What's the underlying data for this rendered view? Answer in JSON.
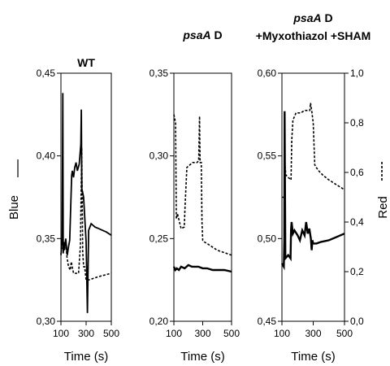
{
  "panels": [
    {
      "title_lines": [
        {
          "segments": [
            {
              "text": "WT",
              "italic": false
            }
          ]
        }
      ],
      "yticks": [
        "0,30",
        "0,35",
        "0,40",
        "0,45"
      ],
      "xticks": [
        "100",
        "300",
        "500"
      ],
      "xlabel": "Time (s)"
    },
    {
      "title_lines": [
        {
          "segments": [
            {
              "text": "psaA",
              "italic": true
            },
            {
              "text": " D",
              "italic": false
            }
          ]
        }
      ],
      "yticks": [
        "0,20",
        "0,25",
        "0,30",
        "0,35"
      ],
      "xticks": [
        "100",
        "300",
        "500"
      ],
      "xlabel": "Time (s)"
    },
    {
      "title_lines": [
        {
          "segments": [
            {
              "text": "psaA",
              "italic": true
            },
            {
              "text": " D",
              "italic": false
            }
          ]
        },
        {
          "segments": [
            {
              "text": "+Myxothiazol +SHAM",
              "italic": false
            }
          ]
        }
      ],
      "yticks": [
        "0,45",
        "0,50",
        "0,55",
        "0,60"
      ],
      "y2ticks": [
        "0,0",
        "0,2",
        "0,4",
        "0,6",
        "0,8",
        "1,0"
      ],
      "xticks": [
        "100",
        "300",
        "500"
      ],
      "xlabel": "Time (s)"
    }
  ],
  "ylabel_left": "Blue",
  "ylabel_right": "Red",
  "chart_data": [
    {
      "type": "line",
      "title": "WT",
      "xlabel": "Time (s)",
      "ylabel": "Blue",
      "xlim": [
        100,
        500
      ],
      "ylim": [
        0.3,
        0.45
      ],
      "series": [
        {
          "name": "Blue",
          "color": "#000000",
          "style": "solid",
          "x": [
            100,
            110,
            115,
            118,
            122,
            128,
            138,
            150,
            160,
            170,
            185,
            190,
            200,
            210,
            220,
            230,
            245,
            258,
            262,
            266,
            270,
            280,
            300,
            310,
            320,
            340,
            370,
            400,
            430,
            460,
            500
          ],
          "y": [
            0.34,
            0.35,
            0.438,
            0.341,
            0.348,
            0.343,
            0.35,
            0.34,
            0.345,
            0.349,
            0.388,
            0.391,
            0.387,
            0.393,
            0.396,
            0.391,
            0.395,
            0.407,
            0.428,
            0.378,
            0.379,
            0.375,
            0.348,
            0.305,
            0.355,
            0.359,
            0.357,
            0.356,
            0.355,
            0.354,
            0.352
          ]
        },
        {
          "name": "Red",
          "color": "#000000",
          "style": "dashed",
          "x": [
            100,
            120,
            135,
            140,
            148,
            160,
            175,
            182,
            200,
            240,
            255,
            265,
            273,
            280,
            288,
            300,
            320,
            400,
            500
          ],
          "y": [
            0.345,
            0.343,
            0.346,
            0.346,
            0.339,
            0.333,
            0.331,
            0.336,
            0.329,
            0.329,
            0.346,
            0.405,
            0.342,
            0.333,
            0.333,
            0.325,
            0.325,
            0.327,
            0.329
          ]
        }
      ]
    },
    {
      "type": "line",
      "title": "psaA D",
      "xlabel": "Time (s)",
      "ylabel": "Blue",
      "xlim": [
        100,
        500
      ],
      "ylim": [
        0.2,
        0.35
      ],
      "series": [
        {
          "name": "Blue",
          "color": "#000000",
          "style": "solid",
          "x": [
            100,
            110,
            120,
            135,
            150,
            175,
            200,
            225,
            250,
            270,
            300,
            330,
            370,
            410,
            450,
            500
          ],
          "y": [
            0.233,
            0.231,
            0.232,
            0.231,
            0.233,
            0.232,
            0.234,
            0.233,
            0.233,
            0.233,
            0.232,
            0.232,
            0.231,
            0.231,
            0.231,
            0.23
          ]
        },
        {
          "name": "Red",
          "color": "#000000",
          "style": "dashed",
          "x": [
            100,
            112,
            117,
            125,
            150,
            172,
            178,
            190,
            230,
            260,
            272,
            278,
            282,
            290,
            295,
            300,
            310,
            330,
            400,
            500
          ],
          "y": [
            0.325,
            0.32,
            0.262,
            0.265,
            0.256,
            0.257,
            0.27,
            0.293,
            0.296,
            0.296,
            0.297,
            0.324,
            0.296,
            0.296,
            0.26,
            0.249,
            0.248,
            0.247,
            0.243,
            0.24
          ]
        }
      ]
    },
    {
      "type": "line",
      "title": "psaA D +Myxothiazol +SHAM",
      "xlabel": "Time (s)",
      "ylabel": "Blue",
      "y2label": "Red",
      "xlim": [
        100,
        500
      ],
      "ylim": [
        0.45,
        0.6
      ],
      "y2lim": [
        0.0,
        1.0
      ],
      "series": [
        {
          "name": "Blue",
          "color": "#000000",
          "style": "solid",
          "axis": "left",
          "x": [
            100,
            112,
            115,
            117,
            122,
            140,
            155,
            158,
            162,
            170,
            180,
            200,
            215,
            230,
            245,
            255,
            265,
            275,
            285,
            290,
            295,
            300,
            320,
            350,
            400,
            450,
            500
          ],
          "y": [
            0.485,
            0.483,
            0.498,
            0.577,
            0.488,
            0.49,
            0.488,
            0.505,
            0.51,
            0.503,
            0.505,
            0.502,
            0.499,
            0.505,
            0.502,
            0.51,
            0.503,
            0.506,
            0.5,
            0.493,
            0.499,
            0.497,
            0.497,
            0.498,
            0.499,
            0.501,
            0.503
          ]
        },
        {
          "name": "Red",
          "color": "#000000",
          "style": "dashed",
          "axis": "right",
          "x": [
            100,
            115,
            118,
            125,
            140,
            158,
            163,
            170,
            190,
            220,
            245,
            260,
            278,
            283,
            290,
            300,
            310,
            330,
            360,
            400,
            450,
            500
          ],
          "y": [
            0.5,
            0.5,
            0.64,
            0.59,
            0.58,
            0.57,
            0.73,
            0.81,
            0.84,
            0.84,
            0.85,
            0.85,
            0.85,
            0.88,
            0.85,
            0.8,
            0.63,
            0.61,
            0.59,
            0.57,
            0.55,
            0.53
          ]
        }
      ]
    }
  ]
}
